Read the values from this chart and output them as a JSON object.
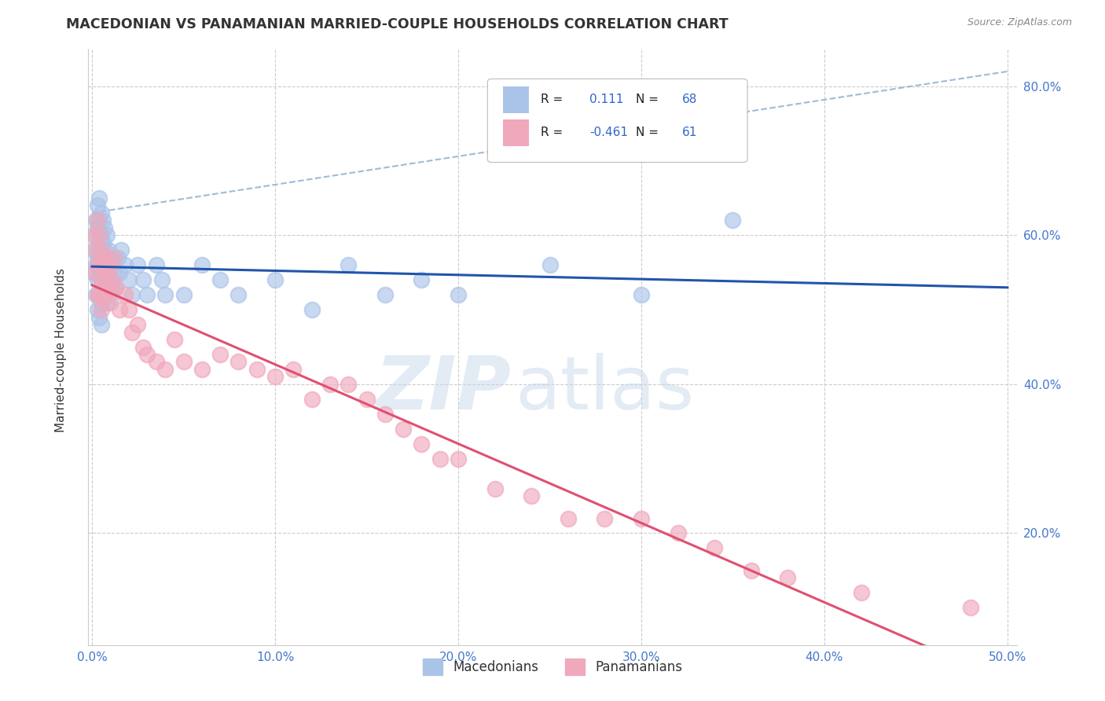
{
  "title": "MACEDONIAN VS PANAMANIAN MARRIED-COUPLE HOUSEHOLDS CORRELATION CHART",
  "source": "Source: ZipAtlas.com",
  "xlabel": "",
  "ylabel": "Married-couple Households",
  "xlim": [
    -0.002,
    0.505
  ],
  "ylim": [
    0.05,
    0.85
  ],
  "xticks": [
    0.0,
    0.1,
    0.2,
    0.3,
    0.4,
    0.5
  ],
  "xticklabels": [
    "0.0%",
    "10.0%",
    "20.0%",
    "30.0%",
    "40.0%",
    "50.0%"
  ],
  "yticks": [
    0.2,
    0.4,
    0.6,
    0.8
  ],
  "yticklabels": [
    "20.0%",
    "40.0%",
    "60.0%",
    "80.0%"
  ],
  "macedonian_color": "#aac4e8",
  "panamanian_color": "#f0a8bc",
  "macedonian_line_color": "#2255aa",
  "panamanian_line_color": "#e05070",
  "macedonian_R": 0.111,
  "macedonian_N": 68,
  "panamanian_R": -0.461,
  "panamanian_N": 61,
  "legend_macedonians": "Macedonians",
  "legend_panamanians": "Panamanians",
  "background": "#ffffff",
  "grid_color": "#cccccc",
  "dash_line_color": "#88aacc",
  "macedonian_x": [
    0.001,
    0.001,
    0.002,
    0.002,
    0.002,
    0.002,
    0.003,
    0.003,
    0.003,
    0.003,
    0.003,
    0.004,
    0.004,
    0.004,
    0.004,
    0.004,
    0.004,
    0.005,
    0.005,
    0.005,
    0.005,
    0.005,
    0.005,
    0.006,
    0.006,
    0.006,
    0.006,
    0.007,
    0.007,
    0.007,
    0.007,
    0.008,
    0.008,
    0.008,
    0.009,
    0.009,
    0.01,
    0.01,
    0.01,
    0.011,
    0.011,
    0.012,
    0.013,
    0.014,
    0.015,
    0.016,
    0.018,
    0.02,
    0.022,
    0.025,
    0.028,
    0.03,
    0.035,
    0.038,
    0.04,
    0.05,
    0.06,
    0.07,
    0.08,
    0.1,
    0.12,
    0.14,
    0.16,
    0.18,
    0.2,
    0.25,
    0.3,
    0.35
  ],
  "macedonian_y": [
    0.55,
    0.58,
    0.6,
    0.62,
    0.56,
    0.52,
    0.64,
    0.61,
    0.57,
    0.54,
    0.5,
    0.65,
    0.62,
    0.58,
    0.55,
    0.52,
    0.49,
    0.63,
    0.6,
    0.57,
    0.54,
    0.51,
    0.48,
    0.62,
    0.59,
    0.56,
    0.53,
    0.61,
    0.58,
    0.55,
    0.52,
    0.6,
    0.57,
    0.54,
    0.58,
    0.55,
    0.57,
    0.54,
    0.51,
    0.56,
    0.53,
    0.55,
    0.53,
    0.57,
    0.55,
    0.58,
    0.56,
    0.54,
    0.52,
    0.56,
    0.54,
    0.52,
    0.56,
    0.54,
    0.52,
    0.52,
    0.56,
    0.54,
    0.52,
    0.54,
    0.5,
    0.56,
    0.52,
    0.54,
    0.52,
    0.56,
    0.52,
    0.62
  ],
  "panamanian_x": [
    0.001,
    0.002,
    0.002,
    0.003,
    0.003,
    0.003,
    0.004,
    0.004,
    0.004,
    0.005,
    0.005,
    0.005,
    0.006,
    0.006,
    0.007,
    0.007,
    0.008,
    0.008,
    0.009,
    0.01,
    0.01,
    0.011,
    0.012,
    0.013,
    0.015,
    0.018,
    0.02,
    0.022,
    0.025,
    0.028,
    0.03,
    0.035,
    0.04,
    0.045,
    0.05,
    0.06,
    0.07,
    0.08,
    0.09,
    0.1,
    0.11,
    0.12,
    0.13,
    0.14,
    0.15,
    0.16,
    0.17,
    0.18,
    0.19,
    0.2,
    0.22,
    0.24,
    0.26,
    0.28,
    0.3,
    0.32,
    0.34,
    0.36,
    0.38,
    0.42,
    0.48
  ],
  "panamanian_y": [
    0.6,
    0.58,
    0.55,
    0.62,
    0.56,
    0.52,
    0.6,
    0.56,
    0.52,
    0.58,
    0.54,
    0.5,
    0.56,
    0.52,
    0.57,
    0.53,
    0.55,
    0.51,
    0.53,
    0.56,
    0.52,
    0.54,
    0.57,
    0.53,
    0.5,
    0.52,
    0.5,
    0.47,
    0.48,
    0.45,
    0.44,
    0.43,
    0.42,
    0.46,
    0.43,
    0.42,
    0.44,
    0.43,
    0.42,
    0.41,
    0.42,
    0.38,
    0.4,
    0.4,
    0.38,
    0.36,
    0.34,
    0.32,
    0.3,
    0.3,
    0.26,
    0.25,
    0.22,
    0.22,
    0.22,
    0.2,
    0.18,
    0.15,
    0.14,
    0.12,
    0.1
  ]
}
